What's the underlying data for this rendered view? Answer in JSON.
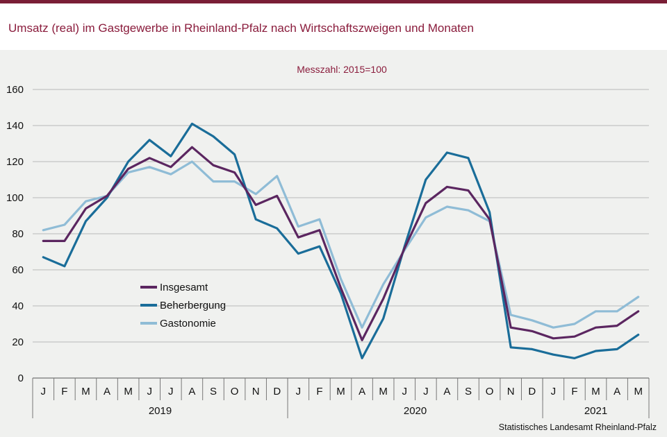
{
  "header": {
    "title": "Umsatz (real) im Gastgewerbe in Rheinland-Pfalz nach Wirtschaftszweigen und Monaten"
  },
  "source": "Statistisches Landesamt Rheinland-Pfalz",
  "colors": {
    "header_bar": "#7a1e36",
    "title": "#8a1c3c",
    "insgesamt": "#5b2660",
    "beherbergung": "#1a6d99",
    "gastronomie": "#8fbcd6"
  },
  "chart_data": {
    "type": "line",
    "subtitle": "Messzahl: 2015=100",
    "ylim": [
      0,
      160
    ],
    "yticks": [
      0,
      20,
      40,
      60,
      80,
      100,
      120,
      140,
      160
    ],
    "grid": true,
    "legend_position": "bottom-left inside",
    "categories": [
      "J",
      "F",
      "M",
      "A",
      "M",
      "J",
      "J",
      "A",
      "S",
      "O",
      "N",
      "D",
      "J",
      "F",
      "M",
      "A",
      "M",
      "J",
      "J",
      "A",
      "S",
      "O",
      "N",
      "D",
      "J",
      "F",
      "M",
      "A",
      "M"
    ],
    "years": [
      {
        "label": "2019",
        "months": 12
      },
      {
        "label": "2020",
        "months": 12
      },
      {
        "label": "2021",
        "months": 5
      }
    ],
    "series": [
      {
        "name": "Insgesamt",
        "color": "#5b2660",
        "values": [
          76,
          76,
          94,
          101,
          116,
          122,
          117,
          128,
          118,
          114,
          96,
          101,
          78,
          82,
          50,
          21,
          44,
          72,
          97,
          106,
          104,
          88,
          28,
          26,
          22,
          23,
          28,
          29,
          37
        ]
      },
      {
        "name": "Beherbergung",
        "color": "#1a6d99",
        "values": [
          67,
          62,
          87,
          100,
          120,
          132,
          123,
          141,
          134,
          124,
          88,
          83,
          69,
          73,
          47,
          11,
          33,
          73,
          110,
          125,
          122,
          92,
          17,
          16,
          13,
          11,
          15,
          16,
          24
        ]
      },
      {
        "name": "Gastonomie",
        "color": "#8fbcd6",
        "values": [
          82,
          85,
          98,
          101,
          114,
          117,
          113,
          120,
          109,
          109,
          102,
          112,
          84,
          88,
          55,
          28,
          52,
          71,
          89,
          95,
          93,
          87,
          35,
          32,
          28,
          30,
          37,
          37,
          45
        ]
      }
    ]
  }
}
